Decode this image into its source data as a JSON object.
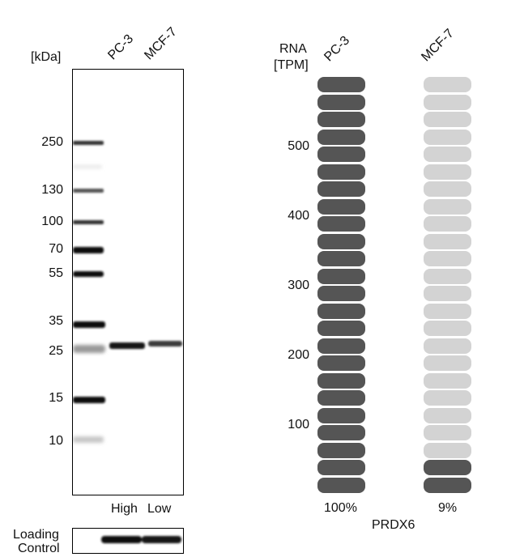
{
  "western_blot": {
    "unit_label": "[kDa]",
    "lanes": [
      "PC-3",
      "MCF-7"
    ],
    "markers": [
      "250",
      "130",
      "100",
      "70",
      "55",
      "35",
      "25",
      "15",
      "10"
    ],
    "lane_levels": [
      "High",
      "Low"
    ],
    "loading_control_label": [
      "Loading",
      "Control"
    ]
  },
  "rna": {
    "axis_label": [
      "RNA",
      "[TPM]"
    ],
    "ticks": [
      "500",
      "400",
      "300",
      "200",
      "100"
    ],
    "gene": "PRDX6",
    "dark_color": "#555555",
    "light_color": "#d3d3d3",
    "columns": [
      {
        "name": "PC-3",
        "percent": "100%",
        "filled": 24,
        "total": 24
      },
      {
        "name": "MCF-7",
        "percent": "9%",
        "filled": 2,
        "total": 24
      }
    ]
  }
}
